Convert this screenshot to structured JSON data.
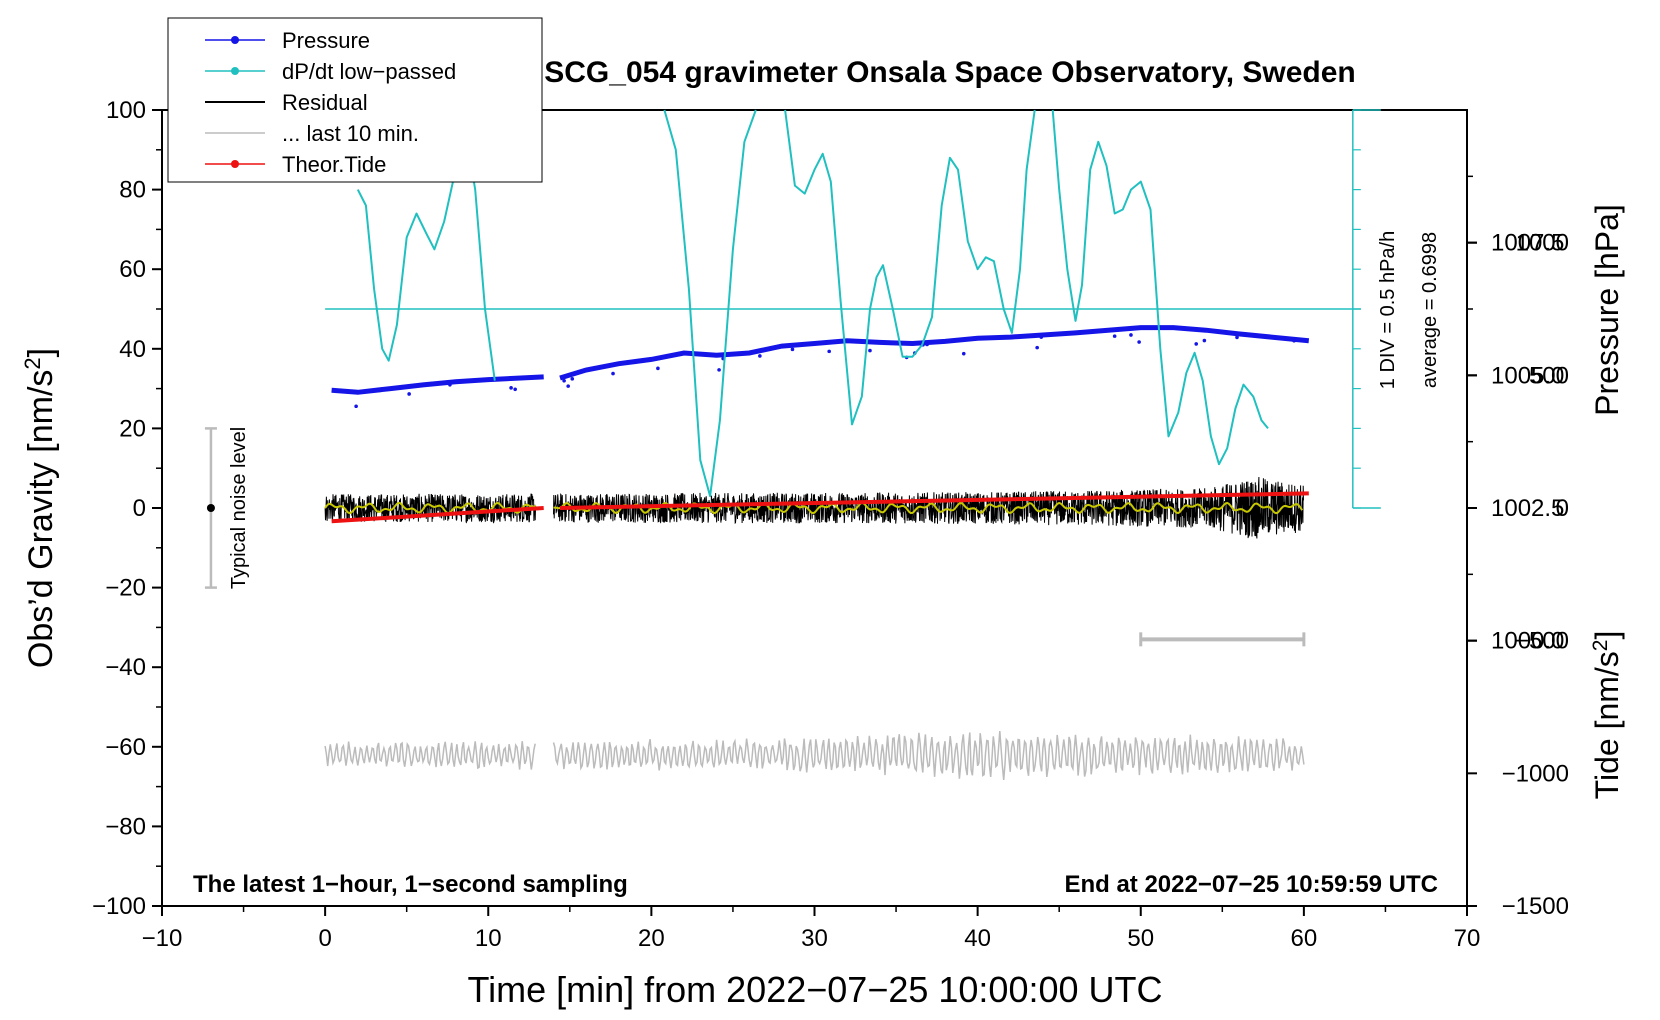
{
  "chart_data": {
    "type": "line",
    "title": "SCG_054 gravimeter Onsala Space Observatory, Sweden",
    "xlabel": "Time [min] from 2022−07−25 10:00:00 UTC",
    "ylabel_left": "Obs’d Gravity [nm/s",
    "ylabel_left_sup": "2",
    "ylabel_left_end": "]",
    "ylabel_right_pressure": "Pressure [hPa]",
    "ylabel_right_tide": "Tide [nm/s",
    "ylabel_right_tide_sup": "2",
    "ylabel_right_tide_end": "]",
    "xlim": [
      -10,
      70
    ],
    "ylim": [
      -100,
      100
    ],
    "pressure_ylim": [
      995.0,
      1010.0
    ],
    "tide_ylim": [
      -1500,
      1500
    ],
    "x_ticks": [
      "−10",
      "0",
      "10",
      "20",
      "30",
      "40",
      "50",
      "60",
      "70"
    ],
    "x_tick_values": [
      -10,
      0,
      10,
      20,
      30,
      40,
      50,
      60,
      70
    ],
    "y_ticks": [
      "−100",
      "−80",
      "−60",
      "−40",
      "−20",
      "0",
      "20",
      "40",
      "60",
      "80",
      "100"
    ],
    "y_tick_values": [
      -100,
      -80,
      -60,
      -40,
      -20,
      0,
      20,
      40,
      60,
      80,
      100
    ],
    "pressure_ticks": [
      "1000.0",
      "1002.5",
      "1005.0",
      "1007.5"
    ],
    "pressure_tick_values": [
      1000.0,
      1002.5,
      1005.0,
      1007.5
    ],
    "tide_ticks": [
      "−1500",
      "−1000",
      "−500",
      "0",
      "500",
      "1000"
    ],
    "tide_tick_values": [
      -1500,
      -1000,
      -500,
      0,
      500,
      1000
    ],
    "legend": {
      "placement": "top-left",
      "entries": [
        {
          "label": "Pressure",
          "color": "#1515e8",
          "marker": true
        },
        {
          "label": "dP/dt low−passed",
          "color": "#20c0c0",
          "marker": true
        },
        {
          "label": "Residual",
          "color": "#000000",
          "marker": false
        },
        {
          "label": "... last 10 min.",
          "color": "#bbbbbb",
          "marker": false
        },
        {
          "label": "Theor.Tide",
          "color": "#ee1111",
          "marker": true
        }
      ]
    },
    "annotations": {
      "bottom_left": "The latest 1−hour, 1−second sampling",
      "bottom_right": "End at 2022−07−25 10:59:59 UTC",
      "noise_label": "Typical noise level",
      "dpdt_scale": "1 DIV = 0.5 hPa/h",
      "dpdt_average": "average = 0.6998"
    },
    "noise_bar": {
      "x": -7,
      "y_center": 0,
      "y_range": [
        -20,
        20
      ]
    },
    "last10_bar": {
      "x_range": [
        50,
        60
      ],
      "y": -33
    },
    "dpdt_baseline_y": 50,
    "dpdt_axis": {
      "x": 63,
      "y_range": [
        0,
        100
      ],
      "div": 0.5
    },
    "series": [
      {
        "name": "Pressure",
        "axis": "pressure",
        "color": "#1515e8",
        "segments": [
          [
            [
              0.4,
              1004.72
            ],
            [
              2.0,
              1004.68
            ],
            [
              4.0,
              1004.75
            ],
            [
              6.0,
              1004.82
            ],
            [
              8.0,
              1004.88
            ],
            [
              10.0,
              1004.92
            ],
            [
              12.0,
              1004.95
            ],
            [
              13.4,
              1004.97
            ]
          ],
          [
            [
              14.4,
              1004.95
            ],
            [
              16.0,
              1005.1
            ],
            [
              18.0,
              1005.22
            ],
            [
              20.0,
              1005.3
            ],
            [
              22.0,
              1005.42
            ],
            [
              24.0,
              1005.38
            ],
            [
              26.0,
              1005.42
            ],
            [
              28.0,
              1005.55
            ],
            [
              30.0,
              1005.6
            ],
            [
              32.0,
              1005.65
            ],
            [
              34.0,
              1005.62
            ],
            [
              36.0,
              1005.6
            ],
            [
              38.0,
              1005.64
            ],
            [
              40.0,
              1005.7
            ],
            [
              42.0,
              1005.72
            ],
            [
              44.0,
              1005.76
            ],
            [
              46.0,
              1005.8
            ],
            [
              48.0,
              1005.85
            ],
            [
              50.0,
              1005.9
            ],
            [
              52.0,
              1005.9
            ],
            [
              54.0,
              1005.85
            ],
            [
              56.0,
              1005.78
            ],
            [
              58.0,
              1005.72
            ],
            [
              60.3,
              1005.65
            ]
          ]
        ]
      },
      {
        "name": "dP/dt low−passed",
        "axis": "gravity",
        "color": "#20c0c0",
        "segments": [
          [
            [
              2.0,
              80
            ],
            [
              2.5,
              76
            ],
            [
              3.0,
              55
            ],
            [
              3.5,
              40
            ],
            [
              3.9,
              37
            ],
            [
              4.4,
              46
            ],
            [
              5.0,
              68
            ],
            [
              5.6,
              74
            ],
            [
              6.2,
              69
            ],
            [
              6.7,
              65
            ],
            [
              7.3,
              72
            ],
            [
              8.0,
              85
            ],
            [
              8.6,
              95
            ],
            [
              9.2,
              80
            ],
            [
              9.8,
              50
            ],
            [
              10.4,
              32
            ]
          ],
          [
            [
              20.8,
              100
            ],
            [
              21.5,
              90
            ],
            [
              22.3,
              55
            ],
            [
              23.0,
              12
            ],
            [
              23.6,
              3
            ],
            [
              24.2,
              22
            ],
            [
              25.0,
              65
            ],
            [
              25.7,
              92
            ],
            [
              26.4,
              100
            ]
          ],
          [
            [
              28.2,
              100
            ],
            [
              28.8,
              81
            ],
            [
              29.4,
              79
            ],
            [
              30.0,
              85
            ],
            [
              30.5,
              89
            ],
            [
              31.0,
              82
            ],
            [
              31.6,
              52
            ],
            [
              32.3,
              21
            ],
            [
              32.9,
              28
            ],
            [
              33.4,
              50
            ],
            [
              33.8,
              58
            ],
            [
              34.2,
              61
            ],
            [
              34.8,
              50
            ],
            [
              35.4,
              38
            ],
            [
              36.0,
              38
            ],
            [
              36.6,
              41
            ],
            [
              37.2,
              48
            ],
            [
              37.8,
              76
            ],
            [
              38.3,
              88
            ],
            [
              38.8,
              85
            ],
            [
              39.4,
              67
            ],
            [
              40.0,
              60
            ],
            [
              40.5,
              63
            ],
            [
              41.0,
              62
            ],
            [
              41.6,
              50
            ],
            [
              42.1,
              44
            ],
            [
              42.6,
              60
            ],
            [
              43.0,
              85
            ],
            [
              43.5,
              100
            ]
          ],
          [
            [
              44.6,
              100
            ],
            [
              45.0,
              80
            ],
            [
              45.5,
              60
            ],
            [
              46.0,
              47
            ],
            [
              46.4,
              56
            ],
            [
              46.9,
              85
            ],
            [
              47.4,
              92
            ],
            [
              47.9,
              86
            ],
            [
              48.4,
              74
            ],
            [
              48.9,
              75
            ],
            [
              49.4,
              80
            ],
            [
              50.0,
              82
            ],
            [
              50.6,
              75
            ],
            [
              51.2,
              40
            ],
            [
              51.7,
              18
            ],
            [
              52.3,
              24
            ],
            [
              52.8,
              34
            ],
            [
              53.3,
              39
            ],
            [
              53.8,
              32
            ],
            [
              54.3,
              18
            ],
            [
              54.8,
              11
            ],
            [
              55.3,
              15
            ],
            [
              55.8,
              25
            ],
            [
              56.3,
              31
            ],
            [
              56.9,
              28
            ],
            [
              57.4,
              22
            ],
            [
              57.8,
              20
            ]
          ]
        ]
      },
      {
        "name": "Residual",
        "axis": "gravity",
        "color": "#000000",
        "segments_x": [
          [
            0.0,
            12.9
          ],
          [
            14.0,
            60.0
          ]
        ],
        "center": 0,
        "amplitude_per_min": [
          [
            0,
            3.5
          ],
          [
            40,
            4
          ],
          [
            54,
            5
          ],
          [
            57,
            8
          ],
          [
            60,
            6
          ]
        ]
      },
      {
        "name": "Residual smoothed",
        "axis": "gravity",
        "color": "#c8c800",
        "segments_x": [
          [
            0.0,
            12.9
          ],
          [
            14.0,
            60.0
          ]
        ],
        "center": 0
      },
      {
        "name": "Theor.Tide",
        "axis": "tide",
        "color": "#ee1111",
        "segments": [
          [
            [
              0.4,
              -50
            ],
            [
              13.4,
              0
            ]
          ],
          [
            [
              14.4,
              0
            ],
            [
              60.3,
              55
            ]
          ]
        ]
      },
      {
        "name": "... last 10 min.",
        "axis": "gravity",
        "color": "#bbbbbb",
        "segments_x": [
          [
            0.0,
            12.9
          ],
          [
            14.0,
            60.0
          ]
        ],
        "center": -62,
        "amplitude_per_min": [
          [
            0,
            3
          ],
          [
            28,
            4
          ],
          [
            40,
            6
          ],
          [
            50,
            5
          ],
          [
            60,
            4
          ]
        ]
      }
    ]
  }
}
